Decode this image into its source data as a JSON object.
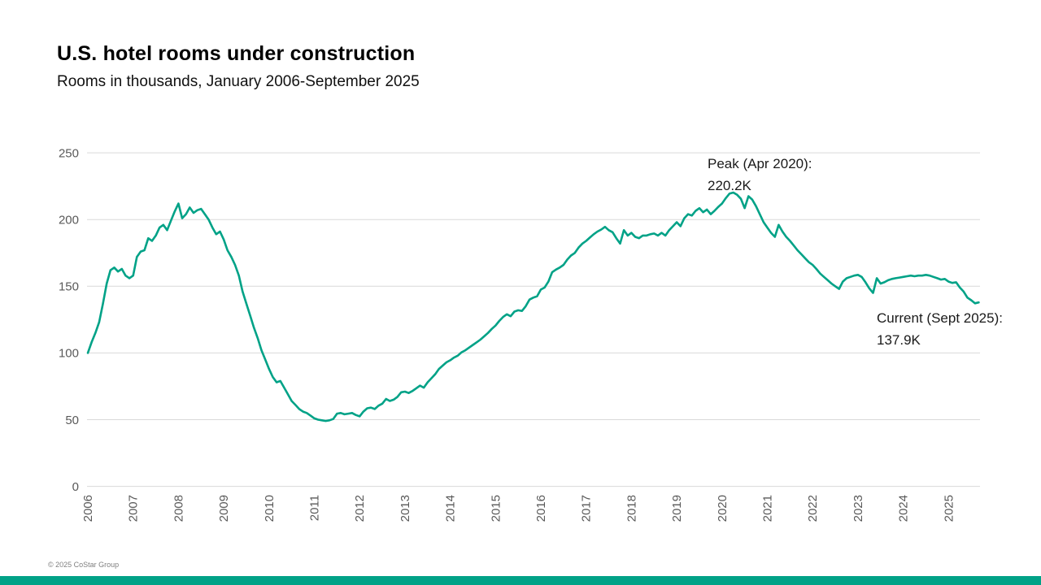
{
  "slide": {
    "title": "U.S. hotel rooms under construction",
    "subtitle": "Rooms in thousands, January 2006-September 2025",
    "footer": "© 2025 CoStar Group"
  },
  "annotations": {
    "peak_line1": "Peak (Apr 2020):",
    "peak_line2": "220.2K",
    "current_line1": "Current (Sept 2025):",
    "current_line2": "137.9K"
  },
  "colors": {
    "line": "#00a287",
    "grid": "#d9d9d9",
    "axis_text": "#595959",
    "bottom_bar": "#00a287"
  },
  "chart_data": {
    "type": "line",
    "title": "U.S. hotel rooms under construction",
    "ylabel": "Rooms in thousands",
    "frequency": "monthly",
    "x_start": "2006-01",
    "x_end": "2025-09",
    "ylim": [
      0,
      250
    ],
    "y_ticks": [
      0,
      50,
      100,
      150,
      200,
      250
    ],
    "x_ticks": [
      "2006",
      "2007",
      "2008",
      "2009",
      "2010",
      "2011",
      "2012",
      "2013",
      "2014",
      "2015",
      "2016",
      "2017",
      "2018",
      "2019",
      "2020",
      "2021",
      "2022",
      "2023",
      "2024",
      "2025"
    ],
    "grid": "horizontal",
    "legend": "none",
    "peak": {
      "date": "Apr 2020",
      "value": 220.2
    },
    "current": {
      "date": "Sept 2025",
      "value": 137.9
    },
    "series": [
      {
        "name": "U.S. hotel rooms under construction (thousands)",
        "values": [
          100,
          108,
          115,
          123,
          137,
          152,
          162,
          164,
          161,
          163,
          158,
          156,
          158,
          172,
          176,
          177,
          186,
          184,
          188,
          194,
          196,
          192,
          199,
          206,
          212,
          201,
          204,
          209,
          205,
          207,
          208,
          204,
          200,
          194,
          189,
          191,
          185,
          177,
          172,
          166,
          158,
          146,
          137,
          128,
          119,
          111,
          102,
          95,
          88,
          82,
          78,
          79,
          74,
          69,
          64,
          61,
          58,
          56,
          55,
          53,
          51,
          50,
          49.5,
          49,
          49.5,
          50.5,
          54.5,
          55,
          54,
          54.5,
          55,
          53.5,
          52.5,
          56,
          58.5,
          59,
          58,
          60.5,
          62,
          65.5,
          64,
          65,
          67,
          70.5,
          71,
          70,
          71.5,
          73.5,
          75.5,
          74,
          78,
          81,
          84,
          88,
          90.5,
          93,
          94.5,
          96.5,
          98,
          100.5,
          102,
          104,
          106,
          108,
          110,
          112.5,
          115,
          118,
          120.5,
          124,
          127,
          129,
          127.5,
          131,
          132,
          131.5,
          135,
          140,
          141.5,
          142.5,
          147.5,
          149,
          153.5,
          160.5,
          162.5,
          164,
          166,
          170,
          173,
          175,
          179,
          182,
          184,
          186.5,
          189,
          191,
          192.5,
          194.5,
          192,
          190.5,
          186,
          182,
          192,
          188,
          190,
          187,
          186,
          188,
          188,
          189,
          189.5,
          188,
          190,
          188,
          192,
          195,
          198,
          195,
          201,
          204,
          203,
          206.5,
          208.5,
          205.5,
          207.5,
          204,
          206.5,
          209.5,
          212,
          216,
          219.5,
          220.2,
          218.5,
          215.5,
          208.5,
          217.5,
          215,
          210,
          204,
          198,
          194,
          190,
          187,
          196,
          191,
          187,
          184,
          180.5,
          177,
          174,
          171,
          168,
          166,
          163,
          159.5,
          157,
          154.5,
          152,
          150,
          148,
          153.5,
          156,
          157,
          158,
          158.5,
          157,
          153,
          148.5,
          145,
          156,
          152,
          153,
          154.5,
          155.5,
          156,
          156.5,
          157,
          157.5,
          158,
          157.5,
          158,
          158,
          158.5,
          158,
          157,
          156,
          155,
          155.5,
          153.5,
          152.5,
          153,
          149,
          146,
          141.5,
          139.5,
          137.2,
          137.9
        ]
      }
    ]
  }
}
